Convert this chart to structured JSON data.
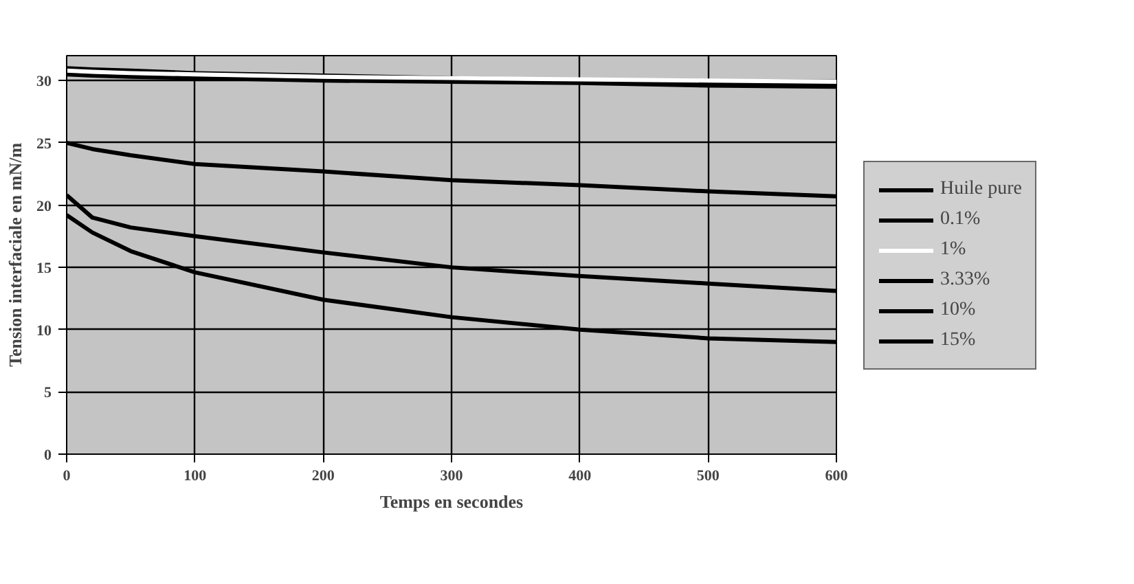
{
  "chart_data": {
    "type": "line",
    "xlabel": "Temps en secondes",
    "ylabel": "Tension interfaciale en mN/m",
    "x": [
      0,
      20,
      50,
      100,
      200,
      300,
      400,
      500,
      600
    ],
    "xlim": [
      0,
      600
    ],
    "xticks": [
      0,
      100,
      200,
      300,
      400,
      500,
      600
    ],
    "ylim": [
      0,
      32
    ],
    "yticks": [
      0,
      5,
      10,
      15,
      20,
      25,
      30
    ],
    "grid": true,
    "legend": "right",
    "marker": "none",
    "line_style": "solid",
    "series": [
      {
        "name": "Huile pure",
        "color": "#000000",
        "values": [
          31.0,
          30.9,
          30.8,
          30.6,
          30.4,
          30.2,
          30.0,
          29.8,
          29.7
        ]
      },
      {
        "name": "0.1%",
        "color": "#000000",
        "values": [
          30.5,
          30.4,
          30.3,
          30.2,
          30.0,
          29.9,
          29.8,
          29.6,
          29.5
        ]
      },
      {
        "name": "1%",
        "color": "#ffffff",
        "values": [
          30.8,
          30.7,
          30.6,
          30.5,
          30.3,
          30.2,
          30.1,
          30.0,
          29.9
        ]
      },
      {
        "name": "3.33%",
        "color": "#000000",
        "values": [
          25.0,
          24.5,
          24.0,
          23.3,
          22.7,
          22.0,
          21.6,
          21.1,
          20.7
        ]
      },
      {
        "name": "10%",
        "color": "#000000",
        "values": [
          20.8,
          19.0,
          18.2,
          17.5,
          16.2,
          15.0,
          14.3,
          13.7,
          13.1
        ]
      },
      {
        "name": "15%",
        "color": "#000000",
        "values": [
          19.2,
          17.8,
          16.3,
          14.6,
          12.4,
          11.0,
          10.0,
          9.3,
          9.0
        ]
      }
    ]
  }
}
